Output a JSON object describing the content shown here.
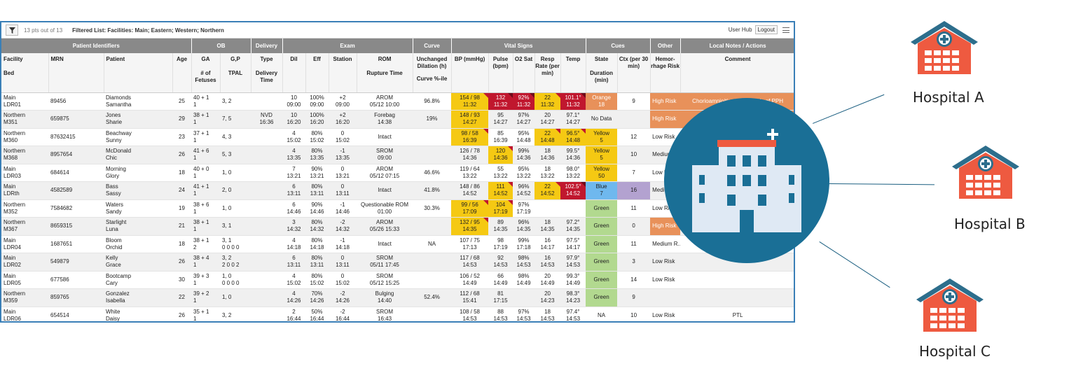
{
  "toolbar": {
    "pts": "13 pts out of 13",
    "filter": "Filtered List: Facilities: Main; Eastern; Western; Northern",
    "user_hub": "User Hub",
    "logout": "Logout"
  },
  "groups": [
    "Patient Identifiers",
    "OB",
    "Delivery",
    "Exam",
    "Curve",
    "Vital Signs",
    "Cues",
    "Other",
    "Local Notes / Actions"
  ],
  "headers": {
    "facility": "Facility",
    "bed": "Bed",
    "mrn": "MRN",
    "patient": "Patient",
    "age": "Age",
    "ga": "GA",
    "fetuses": "# of Fetuses",
    "gp": "G,P",
    "tpal": "TPAL",
    "type": "Type",
    "delivery_time": "Delivery Time",
    "dil": "Dil",
    "eff": "Eff",
    "station": "Station",
    "rom": "ROM",
    "rupture": "Rupture Time",
    "unchanged": "Unchanged Dilation (h)",
    "curve_pct": "Curve %-ile",
    "bp": "BP (mmHg)",
    "pulse": "Pulse (bpm)",
    "o2": "O2 Sat",
    "resp": "Resp Rate (per min)",
    "temp": "Temp",
    "state": "State",
    "duration": "Duration (min)",
    "ctx": "Ctx (per 30 min)",
    "hemo": "Hemor- rhage Risk",
    "comment": "Comment"
  },
  "rows": [
    {
      "fac": "Main",
      "bed": "LDR01",
      "mrn": "89456",
      "p1": "Diamonds",
      "p2": "Samantha",
      "age": "25",
      "ga": "40 + 1",
      "fet": "1",
      "gp": "3, 2",
      "tpal": "",
      "type": "",
      "dtime": "",
      "dil": "10",
      "dilt": "09:00",
      "eff": "100%",
      "efft": "09:00",
      "sta": "+2",
      "stat": "09:00",
      "rom": "AROM",
      "romt": "05/12 10:00",
      "unch": "96.8%",
      "bp": "154 / 98",
      "bpt": "11:32",
      "pul": "132",
      "pult": "11:32",
      "o2": "92%",
      "o2t": "11:32",
      "rr": "22",
      "rrt": "11:32",
      "tmp": "101.1°",
      "tmpt": "11:32",
      "st": "Orange",
      "dur": "18",
      "ctx": "9",
      "hr": "High Risk",
      "cm": "Chorioamnioitis, GDMA2, Hx of PPH"
    },
    {
      "fac": "Northern",
      "bed": "M351",
      "mrn": "659875",
      "p1": "Jones",
      "p2": "Sharie",
      "age": "29",
      "ga": "38 + 1",
      "fet": "1",
      "gp": "7, 5",
      "tpal": "",
      "type": "NVD",
      "dtime": "16:36",
      "dil": "10",
      "dilt": "16:20",
      "eff": "100%",
      "efft": "16:20",
      "sta": "+2",
      "stat": "16:20",
      "rom": "Forebag",
      "romt": "14:38",
      "unch": "19%",
      "bp": "148 / 93",
      "bpt": "14:27",
      "pul": "95",
      "pult": "14:27",
      "o2": "97%",
      "o2t": "14:27",
      "rr": "20",
      "rrt": "14:27",
      "tmp": "97.1°",
      "tmpt": "14:27",
      "st": "No Data",
      "dur": "",
      "ctx": "",
      "hr": "High Risk",
      "cm": "Gran"
    },
    {
      "fac": "Northern",
      "bed": "M360",
      "mrn": "87632415",
      "p1": "Beachway",
      "p2": "Sunny",
      "age": "23",
      "ga": "37 + 1",
      "fet": "1",
      "gp": "4, 3",
      "tpal": "",
      "type": "",
      "dtime": "",
      "dil": "4",
      "dilt": "15:02",
      "eff": "80%",
      "efft": "15:02",
      "sta": "0",
      "stat": "15:02",
      "rom": "Intact",
      "romt": "",
      "unch": "",
      "bp": "98 / 58",
      "bpt": "16:39",
      "pul": "85",
      "pult": "16:39",
      "o2": "95%",
      "o2t": "14:48",
      "rr": "22",
      "rrt": "14:48",
      "tmp": "96.5°",
      "tmpt": "14:48",
      "st": "Yellow",
      "dur": "5",
      "ctx": "12",
      "hr": "Low Risk",
      "cm": ""
    },
    {
      "fac": "Northern",
      "bed": "M368",
      "mrn": "8957654",
      "p1": "McDonald",
      "p2": "Chic",
      "age": "26",
      "ga": "41 + 6",
      "fet": "1",
      "gp": "5, 3",
      "tpal": "",
      "type": "",
      "dtime": "",
      "dil": "4",
      "dilt": "13:35",
      "eff": "80%",
      "efft": "13:35",
      "sta": "-1",
      "stat": "13:35",
      "rom": "SROM",
      "romt": "09:00",
      "unch": "",
      "bp": "126 / 78",
      "bpt": "14:36",
      "pul": "120",
      "pult": "14:36",
      "o2": "99%",
      "o2t": "14:36",
      "rr": "18",
      "rrt": "14:36",
      "tmp": "99.5°",
      "tmpt": "14:36",
      "st": "Yellow",
      "dur": "5",
      "ctx": "10",
      "hr": "Medium R...",
      "cm": ""
    },
    {
      "fac": "Main",
      "bed": "LDR03",
      "mrn": "684614",
      "p1": "Morning",
      "p2": "Glory",
      "age": "18",
      "ga": "40 + 0",
      "fet": "1",
      "gp": "1, 0",
      "tpal": "",
      "type": "",
      "dtime": "",
      "dil": "7",
      "dilt": "13:21",
      "eff": "90%",
      "efft": "13:21",
      "sta": "0",
      "stat": "13:21",
      "rom": "AROM",
      "romt": "05/12 07:15",
      "unch": "46.6%",
      "bp": "119 / 64",
      "bpt": "13:22",
      "pul": "55",
      "pult": "13:22",
      "o2": "95%",
      "o2t": "13:22",
      "rr": "18",
      "rrt": "13:22",
      "tmp": "98.0°",
      "tmpt": "13:22",
      "st": "Yellow",
      "dur": "50",
      "ctx": "7",
      "hr": "Low Risk",
      "cm": ""
    },
    {
      "fac": "Main",
      "bed": "LDRth",
      "mrn": "4582589",
      "p1": "Bass",
      "p2": "Sassy",
      "age": "24",
      "ga": "41 + 1",
      "fet": "1",
      "gp": "2, 0",
      "tpal": "",
      "type": "",
      "dtime": "",
      "dil": "6",
      "dilt": "13:11",
      "eff": "80%",
      "efft": "13:11",
      "sta": "0",
      "stat": "13:11",
      "rom": "Intact",
      "romt": "",
      "unch": "41.8%",
      "bp": "148 / 86",
      "bpt": "14:52",
      "pul": "111",
      "pult": "14:52",
      "o2": "96%",
      "o2t": "14:52",
      "rr": "22",
      "rrt": "14:52",
      "tmp": "102.5°",
      "tmpt": "14:52",
      "st": "Blue",
      "dur": "7",
      "ctx": "16",
      "hr": "Medium R",
      "cm": ""
    },
    {
      "fac": "Northern",
      "bed": "M352",
      "mrn": "7584682",
      "p1": "Waters",
      "p2": "Sandy",
      "age": "19",
      "ga": "38 + 6",
      "fet": "1",
      "gp": "1, 0",
      "tpal": "",
      "type": "",
      "dtime": "",
      "dil": "6",
      "dilt": "14:46",
      "eff": "90%",
      "efft": "14:46",
      "sta": "-1",
      "stat": "14:46",
      "rom": "Questionable ROM",
      "romt": "01:00",
      "unch": "30.3%",
      "bp": "99 / 56",
      "bpt": "17:09",
      "pul": "104",
      "pult": "17:19",
      "o2": "97%",
      "o2t": "17:19",
      "rr": "",
      "rrt": "",
      "tmp": "",
      "tmpt": "",
      "st": "Green",
      "dur": "",
      "ctx": "11",
      "hr": "Low Risk",
      "cm": ""
    },
    {
      "fac": "Northern",
      "bed": "M367",
      "mrn": "8659315",
      "p1": "Starlight",
      "p2": "Luna",
      "age": "21",
      "ga": "38 + 1",
      "fet": "1",
      "gp": "3, 1",
      "tpal": "",
      "type": "",
      "dtime": "",
      "dil": "3",
      "dilt": "14:32",
      "eff": "80%",
      "efft": "14:32",
      "sta": "-2",
      "stat": "14:32",
      "rom": "AROM",
      "romt": "05/26 15:33",
      "unch": "",
      "bp": "132 / 95",
      "bpt": "14:35",
      "pul": "89",
      "pult": "14:35",
      "o2": "96%",
      "o2t": "14:35",
      "rr": "18",
      "rrt": "14:35",
      "tmp": "97.2°",
      "tmpt": "14:35",
      "st": "Green",
      "dur": "",
      "ctx": "0",
      "hr": "High Risk",
      "cm": ""
    },
    {
      "fac": "Main",
      "bed": "LDR04",
      "mrn": "1687651",
      "p1": "Bloom",
      "p2": "Orchid",
      "age": "18",
      "ga": "38 + 1",
      "fet": "2",
      "gp": "3, 1",
      "tpal": "0 0 0 0",
      "type": "",
      "dtime": "",
      "dil": "4",
      "dilt": "14:18",
      "eff": "80%",
      "efft": "14:18",
      "sta": "-1",
      "stat": "14:18",
      "rom": "Intact",
      "romt": "",
      "unch": "NA",
      "bp": "107 / 75",
      "bpt": "17:13",
      "pul": "98",
      "pult": "17:19",
      "o2": "99%",
      "o2t": "17:18",
      "rr": "16",
      "rrt": "14:17",
      "tmp": "97.5°",
      "tmpt": "14:17",
      "st": "Green",
      "dur": "",
      "ctx": "11",
      "hr": "Medium R...",
      "cm": ""
    },
    {
      "fac": "Main",
      "bed": "LDR02",
      "mrn": "549879",
      "p1": "Kelly",
      "p2": "Grace",
      "age": "26",
      "ga": "38 + 4",
      "fet": "1",
      "gp": "3, 2",
      "tpal": "2 0 0 2",
      "type": "",
      "dtime": "",
      "dil": "6",
      "dilt": "13:11",
      "eff": "80%",
      "efft": "13:11",
      "sta": "0",
      "stat": "13:11",
      "rom": "SROM",
      "romt": "05/11 17:45",
      "unch": "",
      "bp": "117 / 68",
      "bpt": "14:53",
      "pul": "92",
      "pult": "14:53",
      "o2": "98%",
      "o2t": "14:53",
      "rr": "16",
      "rrt": "14:53",
      "tmp": "97.9°",
      "tmpt": "14:53",
      "st": "Green",
      "dur": "",
      "ctx": "3",
      "hr": "Low Risk",
      "cm": ""
    },
    {
      "fac": "Main",
      "bed": "LDR05",
      "mrn": "677586",
      "p1": "Bootcamp",
      "p2": "Cary",
      "age": "30",
      "ga": "39 + 3",
      "fet": "1",
      "gp": "1, 0",
      "tpal": "0 0 0 0",
      "type": "",
      "dtime": "",
      "dil": "4",
      "dilt": "15:02",
      "eff": "80%",
      "efft": "15:02",
      "sta": "0",
      "stat": "15:02",
      "rom": "SROM",
      "romt": "05/12 15:25",
      "unch": "",
      "bp": "106 / 52",
      "bpt": "14:49",
      "pul": "66",
      "pult": "14:49",
      "o2": "98%",
      "o2t": "14:49",
      "rr": "20",
      "rrt": "14:49",
      "tmp": "99.3°",
      "tmpt": "14:49",
      "st": "Green",
      "dur": "",
      "ctx": "14",
      "hr": "Low Risk",
      "cm": ""
    },
    {
      "fac": "Northern",
      "bed": "M359",
      "mrn": "859765",
      "p1": "Gonzalez",
      "p2": "Isabella",
      "age": "22",
      "ga": "39 + 2",
      "fet": "1",
      "gp": "1, 0",
      "tpal": "",
      "type": "",
      "dtime": "",
      "dil": "4",
      "dilt": "14:26",
      "eff": "70%",
      "efft": "14:26",
      "sta": "-2",
      "stat": "14:26",
      "rom": "Bulging",
      "romt": "14:40",
      "unch": "52.4%",
      "bp": "112 / 68",
      "bpt": "15:41",
      "pul": "81",
      "pult": "17:15",
      "o2": "",
      "o2t": "",
      "rr": "20",
      "rrt": "14:23",
      "tmp": "98.3°",
      "tmpt": "14:23",
      "st": "Green",
      "dur": "",
      "ctx": "9",
      "hr": "",
      "cm": ""
    },
    {
      "fac": "Main",
      "bed": "LDR06",
      "mrn": "654514",
      "p1": "White",
      "p2": "Daisy",
      "age": "26",
      "ga": "35 + 1",
      "fet": "1",
      "gp": "3, 2",
      "tpal": "",
      "type": "",
      "dtime": "",
      "dil": "2",
      "dilt": "16:44",
      "eff": "50%",
      "efft": "16:44",
      "sta": "-2",
      "stat": "16:44",
      "rom": "SROM",
      "romt": "16:43",
      "unch": "",
      "bp": "108 / 58",
      "bpt": "14:53",
      "pul": "88",
      "pult": "14:53",
      "o2": "97%",
      "o2t": "14:53",
      "rr": "18",
      "rrt": "14:53",
      "tmp": "97.4°",
      "tmpt": "14:53",
      "st": "NA",
      "dur": "",
      "ctx": "10",
      "hr": "Low Risk",
      "cm": "PTL"
    }
  ],
  "hospitals": {
    "a": "Hospital A",
    "b": "Hospital B",
    "c": "Hospital C"
  },
  "colors": {
    "yellow": "#f5c913",
    "red": "#c0172e",
    "orange": "#e8915a",
    "green": "#b2d98f",
    "blue": "#6fb8ee",
    "purple": "#b3a2d0",
    "hospital_red": "#ee5a40",
    "hospital_teal": "#2d6e8c",
    "circle": "#1a6f96"
  }
}
